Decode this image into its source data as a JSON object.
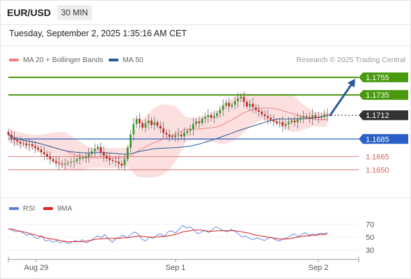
{
  "header": {
    "symbol": "EUR/USD",
    "timeframe": "30 MIN"
  },
  "datetime": "Tuesday, September 2, 2025 1:35:16 AM CET",
  "legend": {
    "ma20_label": "MA 20 + Bollinger Bands",
    "ma50_label": "MA 50",
    "ma20_color": "#f08080",
    "ma50_color": "#2a5a9a"
  },
  "copyright": "Research © 2025 Trading Central",
  "rsi_legend": {
    "rsi_label": "RSI",
    "ma_label": "9MA",
    "rsi_color": "#5a7fd8",
    "ma_color": "#e02020"
  },
  "colors": {
    "bull": "#3a9a2a",
    "bear": "#cc2222",
    "resistance": "#4a9a10",
    "support_strong": "#2a5fc8",
    "support_weak": "#e06060",
    "current": "#333333",
    "arrow": "#2a5a9a",
    "band_fill": "#fbd5d5"
  },
  "chart_data": {
    "type": "candlestick",
    "ylim": [
      1.1625,
      1.177
    ],
    "x_ticks": [
      "Aug 29",
      "Sep 1",
      "Sep 2"
    ],
    "levels": [
      {
        "value": 1.1755,
        "label": "1.1755",
        "kind": "resistance"
      },
      {
        "value": 1.1735,
        "label": "1.1735",
        "kind": "resistance"
      },
      {
        "value": 1.1712,
        "label": "1.1712",
        "kind": "current"
      },
      {
        "value": 1.1685,
        "label": "1.1685",
        "kind": "support_strong"
      },
      {
        "value": 1.1665,
        "label": "1.1665",
        "kind": "support_weak"
      },
      {
        "value": 1.165,
        "label": "1.1650",
        "kind": "support_weak"
      }
    ],
    "closes": [
      1.169,
      1.1686,
      1.1684,
      1.1682,
      1.168,
      1.168,
      1.1678,
      1.1679,
      1.1677,
      1.1675,
      1.1673,
      1.167,
      1.1668,
      1.1665,
      1.1662,
      1.166,
      1.1658,
      1.1657,
      1.1656,
      1.1657,
      1.1658,
      1.1659,
      1.166,
      1.1662,
      1.1664,
      1.1663,
      1.1665,
      1.1668,
      1.1671,
      1.1674,
      1.1676,
      1.167,
      1.1666,
      1.1663,
      1.1661,
      1.166,
      1.1659,
      1.1657,
      1.1655,
      1.1662,
      1.1675,
      1.169,
      1.1702,
      1.1708,
      1.1703,
      1.1698,
      1.1703,
      1.1706,
      1.1701,
      1.1704,
      1.17,
      1.1697,
      1.1692,
      1.169,
      1.1688,
      1.1687,
      1.1689,
      1.169,
      1.1688,
      1.1692,
      1.1694,
      1.1696,
      1.1702,
      1.1705,
      1.1703,
      1.1708,
      1.171,
      1.1712,
      1.1709,
      1.1711,
      1.1714,
      1.1718,
      1.1723,
      1.1726,
      1.1722,
      1.1724,
      1.1728,
      1.1731,
      1.1733,
      1.1727,
      1.1722,
      1.1725,
      1.1721,
      1.1718,
      1.1716,
      1.1713,
      1.1711,
      1.1709,
      1.1707,
      1.1705,
      1.1703,
      1.1704,
      1.17,
      1.1702,
      1.1704,
      1.1706,
      1.1704,
      1.1707,
      1.1709,
      1.1711,
      1.171,
      1.1708,
      1.1712,
      1.171,
      1.1709,
      1.1711,
      1.1713,
      1.1712
    ],
    "rsi": {
      "ticks": [
        70,
        50,
        30
      ],
      "ylim": [
        20,
        80
      ],
      "values": [
        63,
        61,
        58,
        60,
        56,
        53,
        55,
        50,
        48,
        52,
        44,
        46,
        42,
        45,
        41,
        44,
        40,
        42,
        45,
        43,
        46,
        41,
        44,
        48,
        52,
        49,
        54,
        47,
        42,
        48,
        50,
        53,
        49,
        54,
        58,
        55,
        47,
        44,
        50,
        48,
        53,
        55,
        51,
        58,
        60,
        56,
        62,
        68,
        64,
        66,
        61,
        55,
        58,
        60,
        57,
        62,
        66,
        63,
        60,
        58,
        62,
        59,
        55,
        50,
        52,
        48,
        46,
        49,
        47,
        45,
        48,
        50,
        46,
        44,
        47,
        49,
        52,
        55,
        51,
        54,
        57,
        53,
        55,
        54,
        56,
        55,
        57
      ],
      "ma_values": [
        63,
        62,
        61,
        59,
        58,
        57,
        55,
        54,
        52,
        51,
        49,
        48,
        47,
        46,
        45,
        44,
        43,
        43,
        43,
        43,
        43,
        44,
        45,
        46,
        47,
        47,
        48,
        48,
        48,
        48,
        48,
        49,
        49,
        50,
        51,
        52,
        51,
        51,
        50,
        50,
        50,
        51,
        51,
        52,
        53,
        54,
        56,
        58,
        59,
        60,
        61,
        61,
        61,
        60,
        59,
        59,
        60,
        60,
        60,
        60,
        60,
        60,
        59,
        58,
        57,
        56,
        54,
        53,
        52,
        51,
        50,
        49,
        48,
        47,
        47,
        47,
        48,
        49,
        50,
        51,
        52,
        52,
        53,
        53,
        54,
        54,
        55
      ]
    }
  }
}
